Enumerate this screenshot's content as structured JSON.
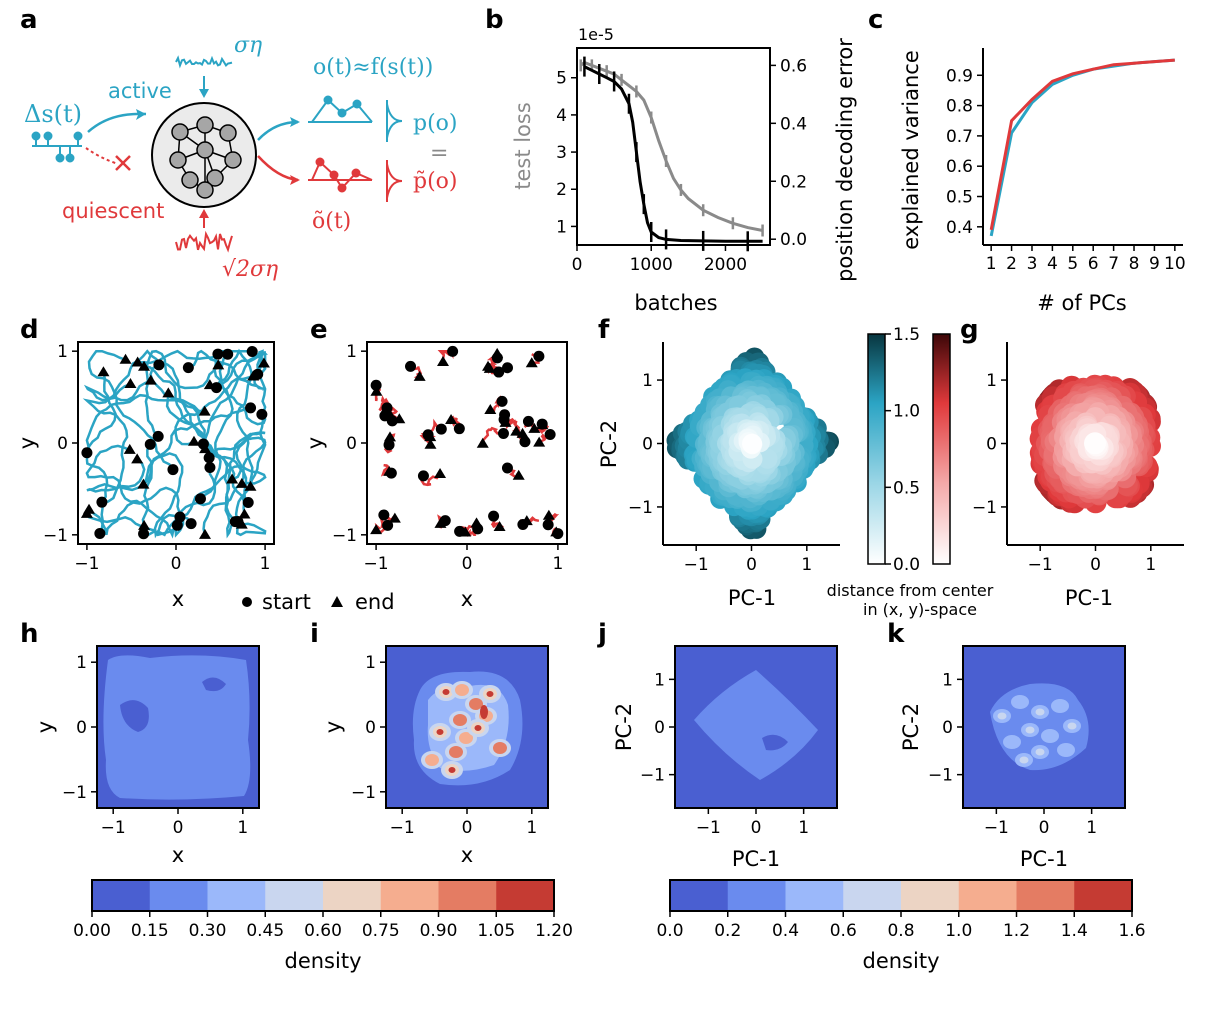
{
  "panel_labels": [
    "a",
    "b",
    "c",
    "d",
    "e",
    "f",
    "g",
    "h",
    "i",
    "j",
    "k"
  ],
  "colors": {
    "active": "#2ba4c4",
    "quiescent": "#e0393b",
    "gray": "#8a8a8a",
    "black": "#000000"
  },
  "panel_a": {
    "delta_s": "Δs(t)",
    "active": "active",
    "quiescent": "quiescent",
    "sigma_eta": "ση",
    "sqrt2_sigma_eta": "√2ση",
    "o_eq": "o(t)≈f(s(t))",
    "o_tilde": "õ(t)",
    "p_o": "p(o)",
    "equals": "=",
    "p_tilde_o": "p̃(o)"
  },
  "chart_data": [
    {
      "panel": "b",
      "type": "line",
      "title": "",
      "scale_note": "1e-5",
      "xlabel": "batches",
      "ylabel": "test loss",
      "ylabel_right": "position decoding error",
      "xlim": [
        0,
        2600
      ],
      "ylim": [
        0.5,
        5.8
      ],
      "ylim_right": [
        -0.02,
        0.66
      ],
      "xticks": [
        "0",
        "1000",
        "2000"
      ],
      "yticks": [
        "1",
        "2",
        "3",
        "4",
        "5"
      ],
      "yticks_right": [
        "0.0",
        "0.2",
        "0.4",
        "0.6"
      ],
      "series": [
        {
          "name": "test loss",
          "axis": "left",
          "color": "#000000",
          "x": [
            100,
            200,
            300,
            400,
            500,
            600,
            700,
            750,
            800,
            850,
            900,
            950,
            1000,
            1100,
            1200,
            1400,
            1700,
            2000,
            2300,
            2500
          ],
          "values": [
            5.3,
            5.2,
            5.1,
            5.0,
            4.9,
            4.7,
            4.3,
            3.8,
            3.0,
            2.2,
            1.6,
            1.1,
            0.85,
            0.7,
            0.65,
            0.62,
            0.61,
            0.6,
            0.6,
            0.6
          ]
        },
        {
          "name": "position decoding error",
          "axis": "right",
          "color": "#8a8a8a",
          "x": [
            50,
            100,
            200,
            300,
            400,
            500,
            600,
            700,
            800,
            900,
            1000,
            1100,
            1200,
            1300,
            1400,
            1500,
            1700,
            1900,
            2100,
            2300,
            2500
          ],
          "values": [
            0.6,
            0.61,
            0.6,
            0.59,
            0.58,
            0.57,
            0.55,
            0.53,
            0.51,
            0.48,
            0.42,
            0.34,
            0.27,
            0.21,
            0.17,
            0.14,
            0.1,
            0.075,
            0.055,
            0.04,
            0.03
          ]
        }
      ]
    },
    {
      "panel": "c",
      "type": "line",
      "xlabel": "# of PCs",
      "ylabel": "explained variance",
      "xlim": [
        0.6,
        10.4
      ],
      "ylim": [
        0.34,
        0.99
      ],
      "categories": [
        "1",
        "2",
        "3",
        "4",
        "5",
        "6",
        "7",
        "8",
        "9",
        "10"
      ],
      "yticks": [
        "0.4",
        "0.5",
        "0.6",
        "0.7",
        "0.8",
        "0.9"
      ],
      "series": [
        {
          "name": "active",
          "color": "#2ba4c4",
          "values": [
            0.37,
            0.71,
            0.81,
            0.87,
            0.9,
            0.92,
            0.93,
            0.94,
            0.945,
            0.95
          ]
        },
        {
          "name": "quiescent",
          "color": "#e0393b",
          "values": [
            0.39,
            0.75,
            0.82,
            0.88,
            0.905,
            0.92,
            0.935,
            0.94,
            0.945,
            0.95
          ]
        }
      ]
    },
    {
      "panel": "d",
      "type": "line",
      "xlabel": "x",
      "ylabel": "y",
      "xlim": [
        -1.1,
        1.1
      ],
      "ylim": [
        -1.1,
        1.1
      ],
      "xticks": [
        "−1",
        "0",
        "1"
      ],
      "yticks": [
        "−1",
        "0",
        "1"
      ],
      "legend": [
        "start",
        "end"
      ]
    },
    {
      "panel": "e",
      "type": "line",
      "xlabel": "x",
      "ylabel": "y",
      "xlim": [
        -1.1,
        1.1
      ],
      "ylim": [
        -1.1,
        1.1
      ],
      "xticks": [
        "−1",
        "0",
        "1"
      ],
      "yticks": [
        "−1",
        "0",
        "1"
      ]
    },
    {
      "panel": "f",
      "type": "scatter",
      "xlabel": "PC-1",
      "ylabel": "PC-2",
      "xlim": [
        -1.6,
        1.6
      ],
      "ylim": [
        -1.6,
        1.6
      ],
      "xticks": [
        "−1",
        "0",
        "1"
      ],
      "yticks": [
        "−1",
        "0",
        "1"
      ],
      "colorbar_label": "distance from center in (x, y)-space",
      "colorbar_label_lines": [
        "distance from center",
        "in (x, y)-space"
      ],
      "colorbar_ticks": [
        "0.0",
        "0.5",
        "1.0",
        "1.5"
      ],
      "colorbar_range": [
        0,
        1.5
      ]
    },
    {
      "panel": "g",
      "type": "scatter",
      "xlabel": "PC-1",
      "ylabel": "",
      "xlim": [
        -1.6,
        1.6
      ],
      "ylim": [
        -1.6,
        1.6
      ],
      "xticks": [
        "−1",
        "0",
        "1"
      ],
      "yticks": [
        "−1",
        "0",
        "1"
      ]
    },
    {
      "panel": "h",
      "type": "heatmap",
      "xlabel": "x",
      "ylabel": "y",
      "xlim": [
        -1.25,
        1.25
      ],
      "ylim": [
        -1.25,
        1.25
      ],
      "xticks": [
        "−1",
        "0",
        "1"
      ],
      "yticks": [
        "−1",
        "0",
        "1"
      ]
    },
    {
      "panel": "i",
      "type": "heatmap",
      "xlabel": "x",
      "ylabel": "y",
      "xlim": [
        -1.25,
        1.25
      ],
      "ylim": [
        -1.25,
        1.25
      ],
      "xticks": [
        "−1",
        "0",
        "1"
      ],
      "yticks": [
        "−1",
        "0",
        "1"
      ]
    },
    {
      "panel": "j",
      "type": "heatmap",
      "xlabel": "PC-1",
      "ylabel": "PC-2",
      "xlim": [
        -1.7,
        1.7
      ],
      "ylim": [
        -1.7,
        1.7
      ],
      "xticks": [
        "−1",
        "0",
        "1"
      ],
      "yticks": [
        "−1",
        "0",
        "1"
      ]
    },
    {
      "panel": "k",
      "type": "heatmap",
      "xlabel": "PC-1",
      "ylabel": "PC-2",
      "xlim": [
        -1.7,
        1.7
      ],
      "ylim": [
        -1.7,
        1.7
      ],
      "xticks": [
        "−1",
        "0",
        "1"
      ],
      "yticks": [
        "−1",
        "0",
        "1"
      ]
    }
  ],
  "colorbars": [
    {
      "label": "density",
      "ticks": [
        "0.00",
        "0.15",
        "0.30",
        "0.45",
        "0.60",
        "0.75",
        "0.90",
        "1.05",
        "1.20"
      ],
      "colors": [
        "#4a5fd1",
        "#6a8bee",
        "#9bb8fa",
        "#c9d6ef",
        "#ecd4c4",
        "#f5ad8f",
        "#e47c63",
        "#c53b33"
      ]
    },
    {
      "label": "density",
      "ticks": [
        "0.0",
        "0.2",
        "0.4",
        "0.6",
        "0.8",
        "1.0",
        "1.2",
        "1.4",
        "1.6"
      ],
      "colors": [
        "#4a5fd1",
        "#6a8bee",
        "#9bb8fa",
        "#c9d6ef",
        "#ecd4c4",
        "#f5ad8f",
        "#e47c63",
        "#c53b33"
      ]
    }
  ]
}
